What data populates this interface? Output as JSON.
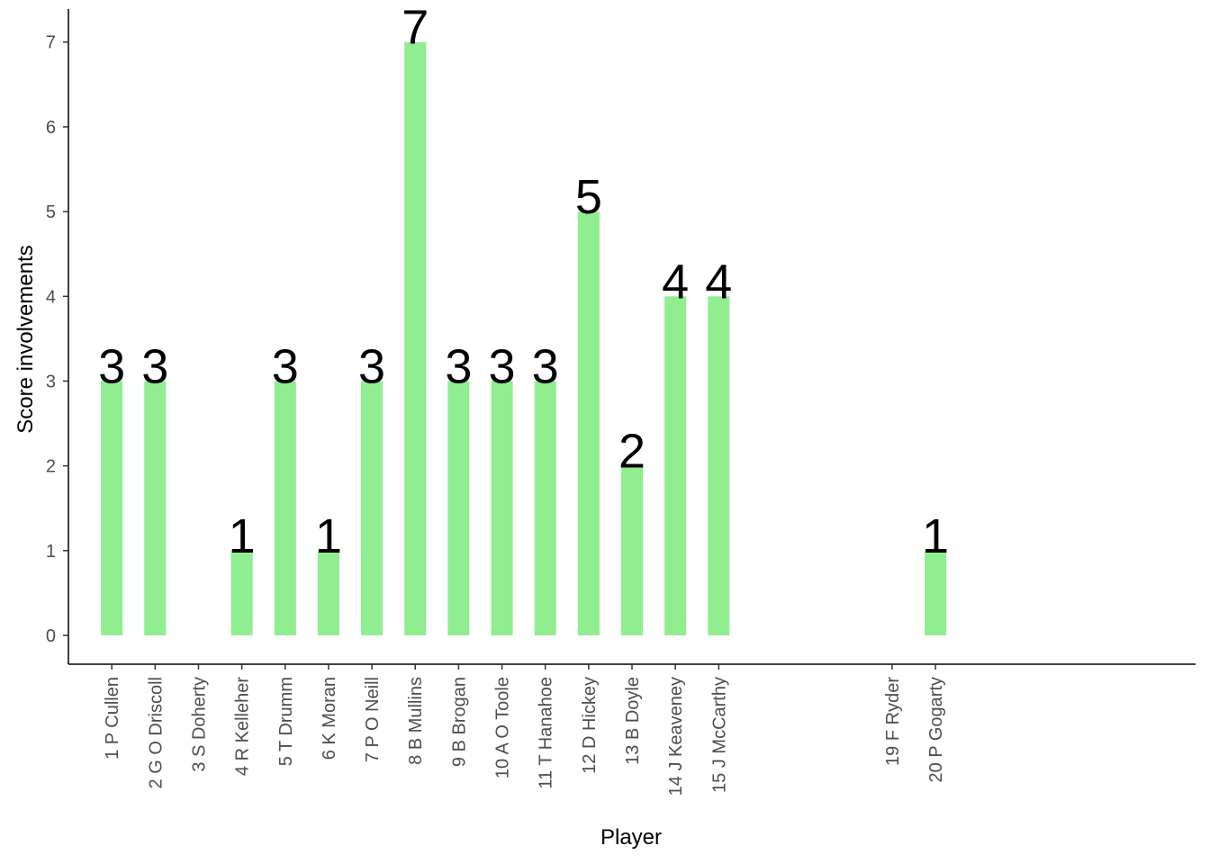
{
  "chart_data": {
    "type": "bar",
    "x_label": "Player",
    "y_label": "Score involvements",
    "categories": [
      "1 P Cullen",
      "2 G O Driscoll",
      "3 S Doherty",
      "4 R Kelleher",
      "5 T Drumm",
      "6 K Moran",
      "7 P O Neill",
      "8 B Mullins",
      "9 B Brogan",
      "10 A O Toole",
      "11 T Hanahoe",
      "12 D Hickey",
      "13 B Doyle",
      "14 J Keaveney",
      "15 J McCarthy",
      null,
      null,
      null,
      "19 F Ryder",
      "20 P Gogarty",
      null,
      null,
      null,
      null,
      null
    ],
    "values": [
      3,
      3,
      null,
      1,
      3,
      1,
      3,
      7,
      3,
      3,
      3,
      5,
      2,
      4,
      4,
      null,
      null,
      null,
      null,
      1,
      null,
      null,
      null,
      null,
      null
    ],
    "color": "#90ee90",
    "ylim": [
      -0.34,
      7.39
    ],
    "yticks": [
      0,
      1,
      2,
      3,
      4,
      5,
      6,
      7
    ]
  }
}
